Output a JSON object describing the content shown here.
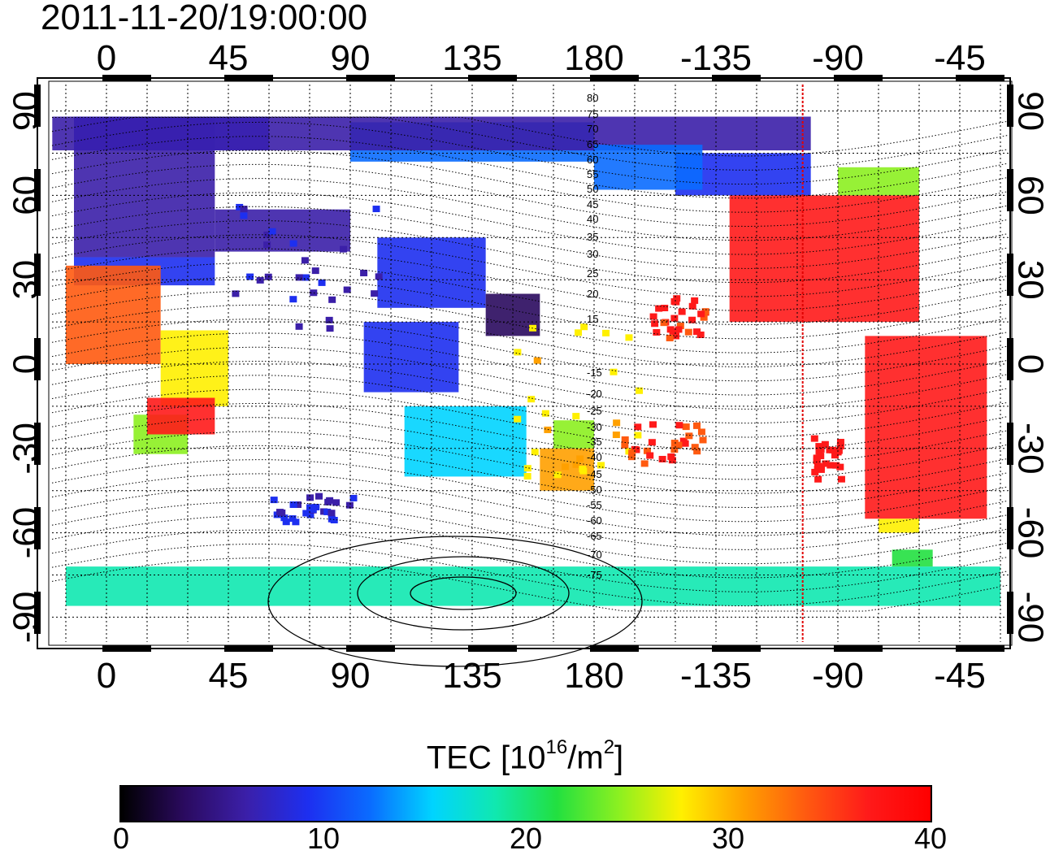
{
  "timestamp": "2011-11-20/19:00:00",
  "map": {
    "top_lon_labels": [
      "0",
      "45",
      "90",
      "135",
      "180",
      "-135",
      "-90",
      "-45"
    ],
    "bottom_lon_labels": [
      "0",
      "45",
      "90",
      "135",
      "180",
      "-135",
      "-90",
      "-45"
    ],
    "left_lat_labels": [
      "90",
      "60",
      "30",
      "0",
      "-30",
      "-60",
      "-90"
    ],
    "right_lat_labels": [
      "90",
      "60",
      "30",
      "0",
      "-30",
      "-60",
      "-90"
    ],
    "contour_labels": [
      "80",
      "75",
      "70",
      "65",
      "60",
      "55",
      "50",
      "45",
      "40",
      "35",
      "30",
      "25",
      "20",
      "15",
      "-15",
      "-20",
      "-25",
      "-30",
      "-35",
      "-40",
      "-45",
      "-50",
      "-55",
      "-60",
      "-65",
      "-70",
      "-75"
    ],
    "terminator_longitude": -103,
    "terminator_color": "#e00000"
  },
  "colorbar": {
    "title_prefix": "TEC  [10",
    "title_sup1": "16",
    "title_mid": "/m",
    "title_sup2": "2",
    "title_suffix": "]",
    "min": 0,
    "max": 40,
    "tick_labels": [
      "0",
      "10",
      "20",
      "30",
      "40"
    ],
    "colors": [
      "#000000",
      "#2a0a5e",
      "#3b1fa8",
      "#1d2ff0",
      "#0a6cff",
      "#00d4ff",
      "#10e8b0",
      "#22e040",
      "#8cf020",
      "#fff000",
      "#ffa000",
      "#ff5a10",
      "#ff1a1a",
      "#ff0000"
    ]
  }
}
